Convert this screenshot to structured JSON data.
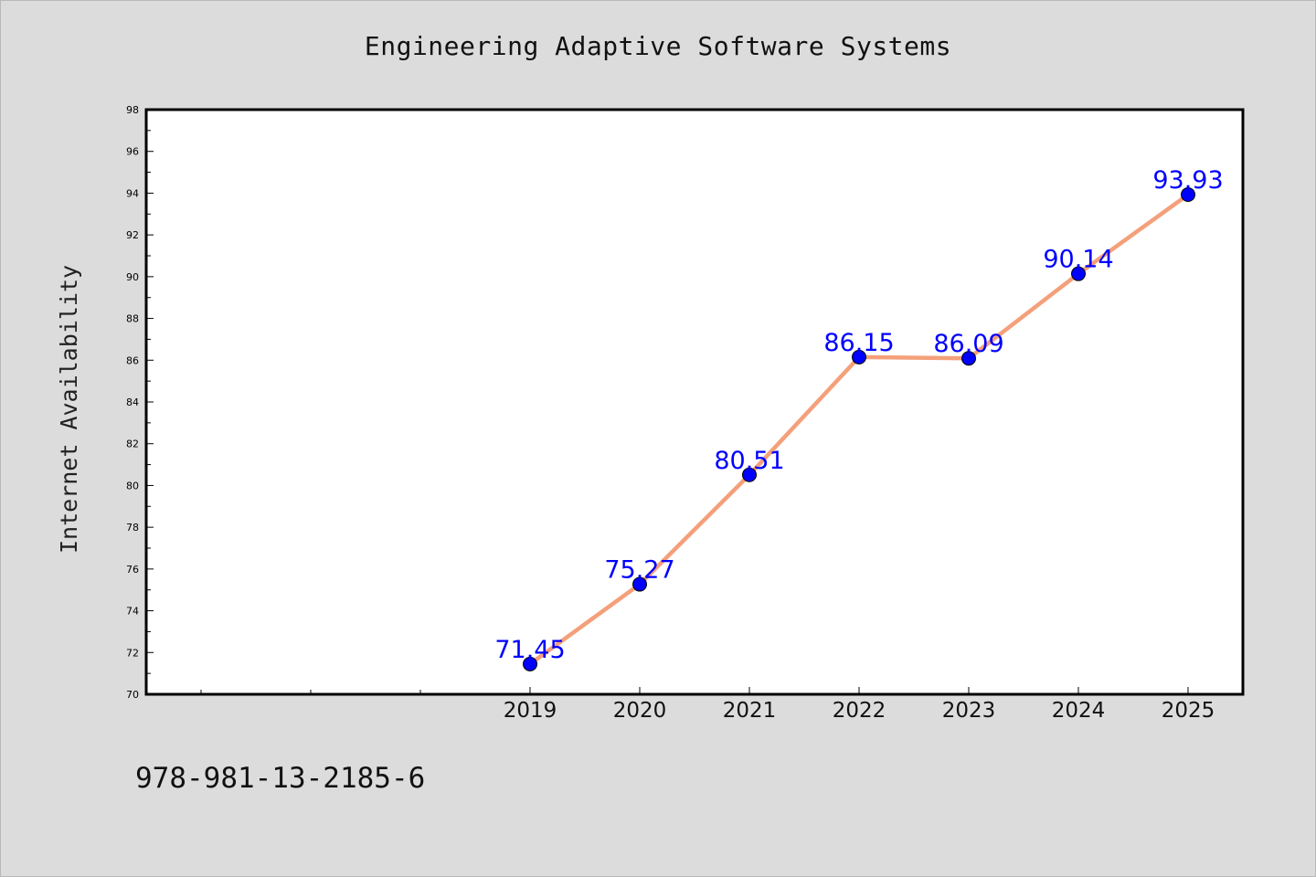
{
  "chart_title": "Engineering Adaptive Software Systems",
  "isbn": "978-981-13-2185-6",
  "colors": {
    "background": "#dcdcdc",
    "plot_area": "#ffffff",
    "line": "#f4a07a",
    "marker": "#0000ff",
    "data_label": "#0000ff"
  },
  "chart_data": {
    "type": "line",
    "title": "Engineering Adaptive Software Systems",
    "xlabel": "",
    "ylabel": "Internet Availability",
    "categories": [
      "2019",
      "2020",
      "2021",
      "2022",
      "2023",
      "2024",
      "2025"
    ],
    "x_extra_slots_before": 3,
    "series": [
      {
        "values": [
          71.45,
          75.27,
          80.51,
          86.15,
          86.09,
          90.14,
          93.93
        ]
      }
    ],
    "data_labels": [
      "71.45",
      "75.27",
      "80.51",
      "86.15",
      "86.09",
      "90.14",
      "93.93"
    ],
    "ylim": [
      70,
      98
    ],
    "yticks": [
      "70",
      "72",
      "74",
      "76",
      "78",
      "80",
      "82",
      "84",
      "86",
      "88",
      "90",
      "92",
      "94",
      "96",
      "98"
    ],
    "grid": false,
    "legend": "none"
  }
}
